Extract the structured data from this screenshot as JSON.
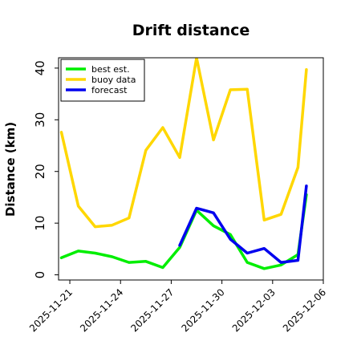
{
  "chart_data": {
    "type": "line",
    "title": "Drift distance",
    "ylabel": "Distance (km)",
    "xlabel": "",
    "ylim": [
      -1,
      42
    ],
    "yticks": [
      0,
      10,
      20,
      30,
      40
    ],
    "xlim": [
      "2025-11-20T08:00",
      "2025-12-06T00:00"
    ],
    "xticks": [
      {
        "date": "2025-11-21",
        "label": "2025-11-21",
        "color": "#000000"
      },
      {
        "date": "2025-11-24",
        "label": "2025-11-24",
        "color": "#000000"
      },
      {
        "date": "2025-11-27",
        "label": "2025-11-27",
        "color": "#228b22"
      },
      {
        "date": "2025-11-30",
        "label": "2025-11-30",
        "color": "#000000"
      },
      {
        "date": "2025-12-03",
        "label": "2025-12-03",
        "color": "#000000"
      },
      {
        "date": "2025-12-06",
        "label": "2025-12-06",
        "color": "#000000"
      }
    ],
    "grid": false,
    "legend": "top-left",
    "series": [
      {
        "name": "best est.",
        "color": "#00ee00",
        "x": [
          "2025-11-20T12:00",
          "2025-11-21T12:00",
          "2025-11-22T12:00",
          "2025-11-23T12:00",
          "2025-11-24T12:00",
          "2025-11-25T12:00",
          "2025-11-26T12:00",
          "2025-11-27T12:00",
          "2025-11-28T12:00",
          "2025-11-29T12:00",
          "2025-11-30T12:00",
          "2025-12-01T12:00",
          "2025-12-02T12:00",
          "2025-12-03T12:00",
          "2025-12-04T12:00",
          "2025-12-05T00:00"
        ],
        "y": [
          3.3,
          4.6,
          4.2,
          3.5,
          2.4,
          2.6,
          1.4,
          5.3,
          12.5,
          9.5,
          7.8,
          2.4,
          1.2,
          1.9,
          3.9,
          15.5
        ]
      },
      {
        "name": "buoy data",
        "color": "#ffd700",
        "x": [
          "2025-11-20T12:00",
          "2025-11-21T12:00",
          "2025-11-22T12:00",
          "2025-11-23T12:00",
          "2025-11-24T12:00",
          "2025-11-25T12:00",
          "2025-11-26T12:00",
          "2025-11-27T12:00",
          "2025-11-28T12:00",
          "2025-11-29T12:00",
          "2025-11-30T12:00",
          "2025-12-01T12:00",
          "2025-12-02T12:00",
          "2025-12-03T12:00",
          "2025-12-04T12:00",
          "2025-12-05T00:00"
        ],
        "y": [
          27.6,
          13.3,
          9.3,
          9.6,
          11.0,
          24.1,
          28.5,
          22.7,
          42.0,
          26.1,
          35.8,
          35.9,
          10.6,
          11.7,
          20.8,
          39.7
        ]
      },
      {
        "name": "forecast",
        "color": "#0000ee",
        "x": [
          "2025-11-27T12:00",
          "2025-11-28T12:00",
          "2025-11-29T12:00",
          "2025-11-30T12:00",
          "2025-12-01T12:00",
          "2025-12-02T12:00",
          "2025-12-03T12:00",
          "2025-12-04T12:00",
          "2025-12-05T00:00"
        ],
        "y": [
          5.7,
          12.9,
          12.0,
          6.9,
          4.2,
          5.1,
          2.4,
          2.8,
          17.2
        ]
      }
    ]
  }
}
